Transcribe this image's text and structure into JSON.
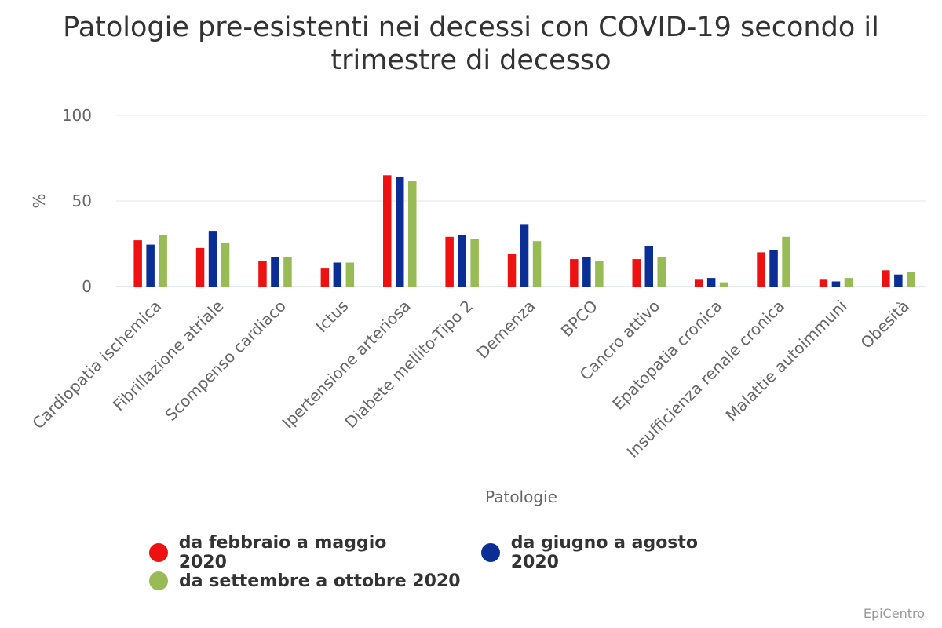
{
  "chart_data": {
    "type": "bar",
    "title": "Patologie pre-esistenti nei decessi con COVID-19 secondo il trimestre di decesso",
    "xlabel": "Patologie",
    "ylabel": "%",
    "ylim": [
      0,
      100
    ],
    "yticks": [
      "0",
      "50",
      "100"
    ],
    "grid": true,
    "legend_position": "bottom",
    "categories": [
      "Cardiopatia ischemica",
      "Fibrillazione atriale",
      "Scompenso cardiaco",
      "Ictus",
      "Ipertensione arteriosa",
      "Diabete mellito-Tipo 2",
      "Demenza",
      "BPCO",
      "Cancro attivo",
      "Epatopatia cronica",
      "Insufficienza renale cronica",
      "Malattie autoimmuni",
      "Obesità"
    ],
    "series": [
      {
        "name": "da febbraio a maggio 2020",
        "color": "#ee1111",
        "values": [
          27,
          22.5,
          15,
          10.5,
          65,
          29,
          19,
          16,
          16,
          4,
          20,
          4,
          9.5
        ]
      },
      {
        "name": "da giugno a agosto 2020",
        "color": "#0a2d96",
        "values": [
          24.5,
          32.5,
          17,
          14,
          64,
          30,
          36.5,
          17,
          23.5,
          5,
          21.5,
          3,
          7
        ]
      },
      {
        "name": "da settembre a ottobre 2020",
        "color": "#99bb55",
        "values": [
          30,
          25.5,
          17,
          14,
          61.5,
          28,
          26.5,
          15,
          17,
          2.5,
          29,
          5,
          8.5
        ]
      }
    ]
  },
  "credit": "EpiCentro"
}
